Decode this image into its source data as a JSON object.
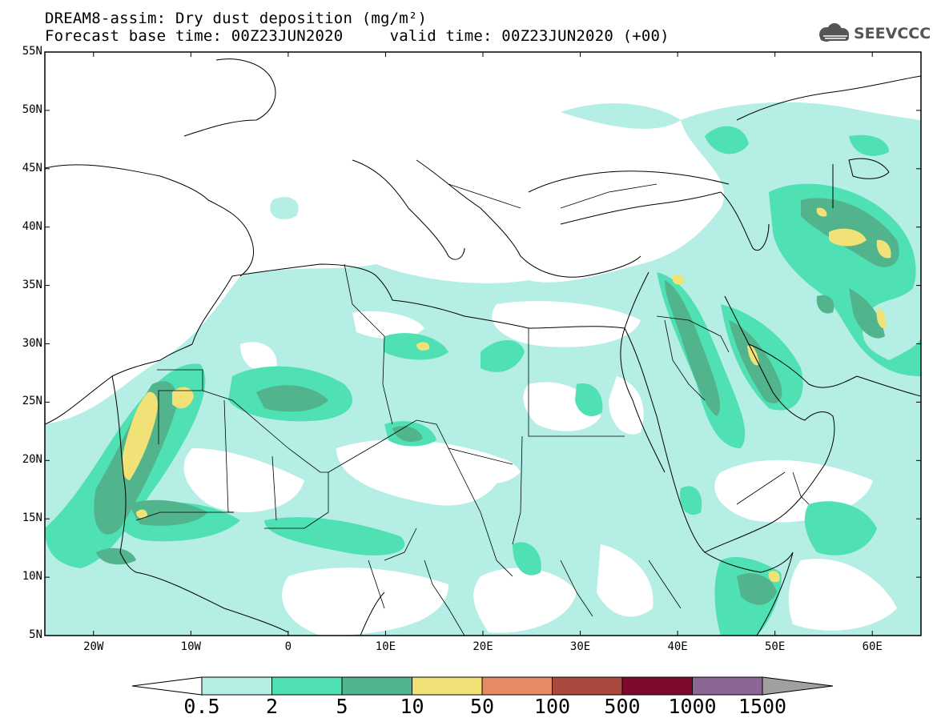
{
  "title": {
    "line1": "DREAM8-assim: Dry dust deposition (mg/m²)",
    "line2": "Forecast base time: 00Z23JUN2020     valid time: 00Z23JUN2020 (+00)"
  },
  "logo": {
    "text": "SEEVCCC",
    "icon": "cloud-icon"
  },
  "axes": {
    "lat_labels": [
      "55N",
      "50N",
      "45N",
      "40N",
      "35N",
      "30N",
      "25N",
      "20N",
      "15N",
      "10N",
      "5N"
    ],
    "lon_labels": [
      "20W",
      "10W",
      "0",
      "10E",
      "20E",
      "30E",
      "40E",
      "50E",
      "60E"
    ],
    "lat_range": [
      5,
      55
    ],
    "lon_range": [
      -25,
      65
    ]
  },
  "legend": {
    "levels": [
      "0.5",
      "2",
      "5",
      "10",
      "50",
      "100",
      "500",
      "1000",
      "1500"
    ],
    "colors": [
      "#ffffff",
      "#b4eee4",
      "#4fe0b4",
      "#52b48c",
      "#f0e276",
      "#e68c64",
      "#aa4a3e",
      "#7d0a2c",
      "#8c6696",
      "#a0a0a0"
    ]
  }
}
